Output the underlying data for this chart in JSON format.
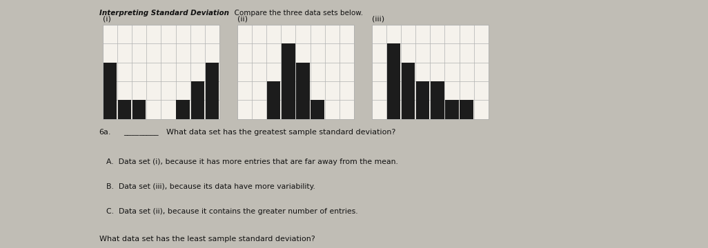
{
  "title_bold": "Interpreting Standard Deviation",
  "title_sub": "Compare the three data sets below.",
  "chart_labels": [
    "(i)",
    "(ii)",
    "(iii)"
  ],
  "chart_i_heights": [
    3,
    1,
    1,
    0,
    0,
    1,
    2,
    3
  ],
  "chart_ii_heights": [
    0,
    0,
    2,
    4,
    3,
    1,
    0,
    0
  ],
  "chart_iii_heights": [
    0,
    4,
    3,
    2,
    2,
    1,
    1,
    0
  ],
  "bar_color": "#1c1c1c",
  "grid_color": "#b0b0b0",
  "page_color": "#f5f2ec",
  "left_bg": "#c8a882",
  "right_bg": "#5a5a5a",
  "top_bg": "#c0bdb5",
  "question_label": "6a.",
  "question_text": "What data set has the greatest sample standard deviation?",
  "answer_a": "A.  Data set (i), because it has more entries that are far away from the mean.",
  "answer_b": "B.  Data set (iii), because its data have more variability.",
  "answer_c": "C.  Data set (ii), because it contains the greater number of entries.",
  "question2_text": "What data set has the least sample standard deviation?",
  "text_color": "#111111",
  "ylim": [
    0,
    5
  ],
  "num_bars": 8,
  "fig_width": 10.26,
  "fig_height": 3.6
}
